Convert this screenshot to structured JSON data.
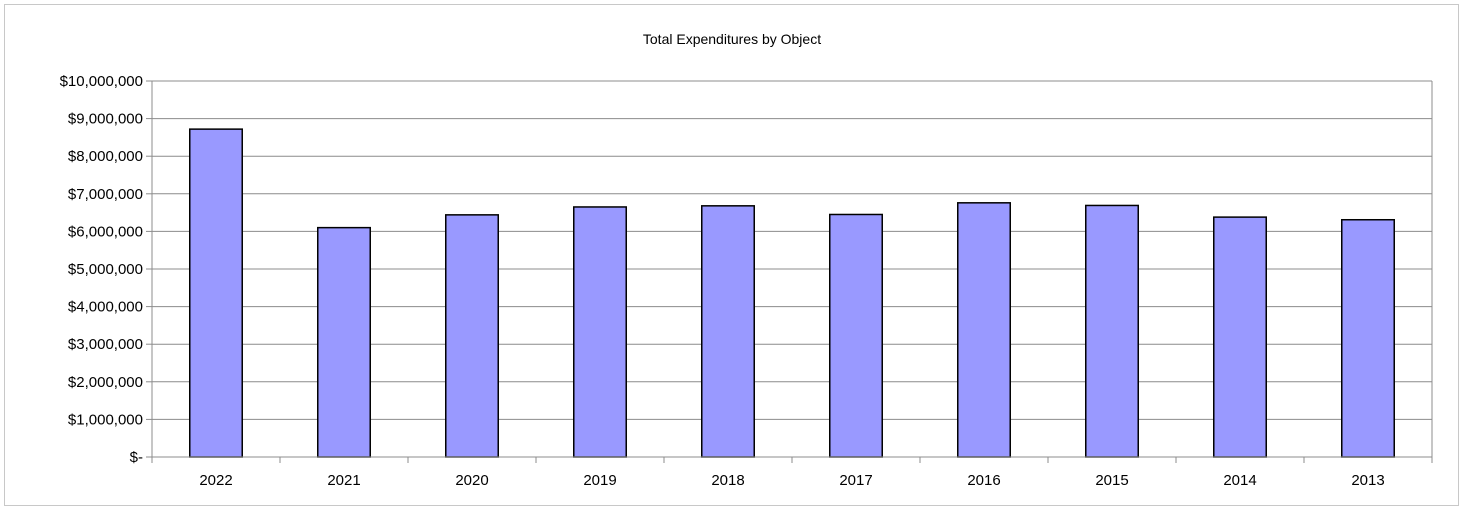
{
  "chart_data": {
    "type": "bar",
    "title": "Total Expenditures by Object",
    "xlabel": "",
    "ylabel": "",
    "categories": [
      "2022",
      "2021",
      "2020",
      "2019",
      "2018",
      "2017",
      "2016",
      "2015",
      "2014",
      "2013"
    ],
    "values": [
      8720000,
      6100000,
      6440000,
      6650000,
      6680000,
      6450000,
      6760000,
      6690000,
      6380000,
      6310000
    ],
    "ylim": [
      0,
      10000000
    ],
    "y_ticks": [
      0,
      1000000,
      2000000,
      3000000,
      4000000,
      5000000,
      6000000,
      7000000,
      8000000,
      9000000,
      10000000
    ],
    "y_tick_labels": [
      "$-",
      "$1,000,000",
      "$2,000,000",
      "$3,000,000",
      "$4,000,000",
      "$5,000,000",
      "$6,000,000",
      "$7,000,000",
      "$8,000,000",
      "$9,000,000",
      "$10,000,000"
    ],
    "grid": true,
    "legend": "none",
    "colors": {
      "bar_fill": "#9999ff",
      "bar_stroke": "#000000",
      "gridline": "#8c8c8c",
      "axis": "#8c8c8c"
    }
  }
}
